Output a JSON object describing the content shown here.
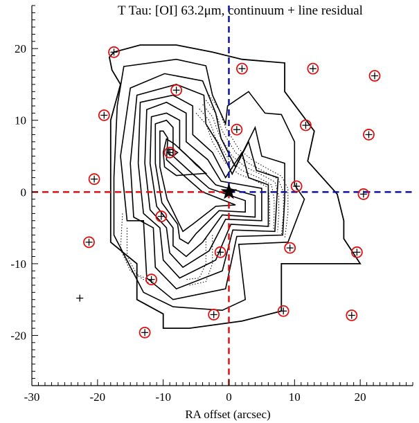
{
  "chart_data": {
    "type": "scatter",
    "title": "T Tau:  [OI] 63.2μm, continuum + line residual",
    "xlabel": "RA offset (arcsec)",
    "ylabel": "",
    "xlim": [
      -30,
      28
    ],
    "ylim": [
      -27,
      26
    ],
    "x_ticks": [
      -30,
      -20,
      -10,
      0,
      10,
      20
    ],
    "y_ticks": [
      -20,
      -10,
      0,
      10,
      20
    ],
    "star_position": [
      0,
      0
    ],
    "spaxel_centers": [
      [
        -17.5,
        19.5
      ],
      [
        2,
        17.2
      ],
      [
        12.8,
        17.2
      ],
      [
        22.2,
        16.2
      ],
      [
        -8,
        14.2
      ],
      [
        -19,
        10.7
      ],
      [
        1.2,
        8.7
      ],
      [
        11.7,
        9.3
      ],
      [
        21.3,
        8
      ],
      [
        -9,
        5.5
      ],
      [
        -20.5,
        1.8
      ],
      [
        10.3,
        0.8
      ],
      [
        20.5,
        -0.3
      ],
      [
        -10.3,
        -3.4
      ],
      [
        -21.3,
        -7
      ],
      [
        -1.3,
        -8.4
      ],
      [
        9.3,
        -7.8
      ],
      [
        19.5,
        -8.4
      ],
      [
        -11.8,
        -12.2
      ],
      [
        -2.3,
        -17.1
      ],
      [
        8.3,
        -16.6
      ],
      [
        18.7,
        -17.2
      ],
      [
        -12.8,
        -19.6
      ],
      [
        -22.7,
        -14.8
      ]
    ],
    "circled_spaxels": 23,
    "reference_lines": {
      "ra_axis_color": "#dd1111",
      "dec_axis_color": "#1111aa",
      "style": "dashed"
    },
    "contours": {
      "solid": [
        [
          [
            -18.2,
            18.8
          ],
          [
            -17.5,
            19.5
          ],
          [
            -13.5,
            20.5
          ],
          [
            -8,
            20.5
          ],
          [
            -2.5,
            19.5
          ],
          [
            2,
            18.5
          ],
          [
            8.5,
            18
          ],
          [
            8.5,
            14
          ],
          [
            13,
            8.5
          ],
          [
            12,
            4.3
          ],
          [
            16.5,
            -0.3
          ],
          [
            17.5,
            -4
          ],
          [
            17.5,
            -6.5
          ],
          [
            20,
            -10
          ],
          [
            8,
            -10
          ],
          [
            8,
            -16.6
          ],
          [
            2,
            -18
          ],
          [
            -6,
            -19
          ],
          [
            -10,
            -19
          ],
          [
            -10,
            -17
          ],
          [
            -14,
            -15
          ],
          [
            -14,
            -10
          ],
          [
            -18,
            -7
          ],
          [
            -18,
            10
          ],
          [
            -16.5,
            15
          ],
          [
            -17.8,
            17
          ]
        ],
        [
          [
            -16,
            17.5
          ],
          [
            -8,
            18.5
          ],
          [
            -3.5,
            17.6
          ],
          [
            -2.5,
            13.5
          ],
          [
            -0.5,
            9.5
          ],
          [
            -0.2,
            12
          ],
          [
            3,
            14
          ],
          [
            5.5,
            11
          ],
          [
            8,
            10.8
          ],
          [
            10,
            7
          ],
          [
            10,
            1
          ],
          [
            11.5,
            -1
          ],
          [
            9,
            -7
          ],
          [
            1.5,
            -7.3
          ],
          [
            2.5,
            -15
          ],
          [
            -1,
            -16.5
          ],
          [
            -8.5,
            -16
          ],
          [
            -13,
            -14
          ],
          [
            -17.5,
            -6
          ],
          [
            -17.5,
            2
          ],
          [
            -17,
            12
          ]
        ],
        [
          [
            -15,
            14.5
          ],
          [
            -9.8,
            16.5
          ],
          [
            -4,
            15.5
          ],
          [
            -2,
            11
          ],
          [
            -1.2,
            7.5
          ],
          [
            1,
            3.5
          ],
          [
            4,
            9
          ],
          [
            5,
            5
          ],
          [
            8.5,
            4
          ],
          [
            8.5,
            -1
          ],
          [
            8.2,
            -6
          ],
          [
            1.2,
            -6.2
          ],
          [
            -0.5,
            -13.5
          ],
          [
            -8.5,
            -15
          ],
          [
            -12.5,
            -12
          ],
          [
            -13,
            -4
          ],
          [
            -15.5,
            -4
          ],
          [
            -16.5,
            5
          ]
        ],
        [
          [
            -14,
            13.5
          ],
          [
            -8,
            15
          ],
          [
            -3.8,
            13.5
          ],
          [
            -3.5,
            9.5
          ],
          [
            -1.8,
            7
          ],
          [
            0.5,
            2.5
          ],
          [
            3,
            7
          ],
          [
            4.2,
            3
          ],
          [
            7.5,
            2
          ],
          [
            7,
            -5.5
          ],
          [
            0.6,
            -5.3
          ],
          [
            -1,
            -11
          ],
          [
            -8,
            -13.5
          ],
          [
            -11.2,
            -10.5
          ],
          [
            -11.5,
            -5
          ],
          [
            -14.5,
            -3.5
          ],
          [
            -15,
            4
          ]
        ],
        [
          [
            -13.5,
            12.5
          ],
          [
            -8.5,
            13.5
          ],
          [
            -5.5,
            12
          ],
          [
            -5.5,
            8
          ],
          [
            -2.5,
            5.5
          ],
          [
            -0.5,
            2
          ],
          [
            2,
            5.5
          ],
          [
            3,
            2
          ],
          [
            6,
            1
          ],
          [
            6,
            -4.8
          ],
          [
            0.3,
            -4.5
          ],
          [
            -2,
            -9.5
          ],
          [
            -7.5,
            -12
          ],
          [
            -10,
            -9.5
          ],
          [
            -10.5,
            -5
          ],
          [
            -13,
            -3
          ],
          [
            -13.8,
            4
          ]
        ],
        [
          [
            -12.5,
            11.5
          ],
          [
            -9.5,
            12.5
          ],
          [
            -6.5,
            11
          ],
          [
            -6.5,
            7
          ],
          [
            -3.2,
            4.5
          ],
          [
            -1.2,
            1.5
          ],
          [
            2,
            1
          ],
          [
            5,
            0.5
          ],
          [
            5,
            -4
          ],
          [
            -0.5,
            -3.8
          ],
          [
            -3,
            -8.2
          ],
          [
            -7,
            -10.5
          ],
          [
            -9,
            -8.5
          ],
          [
            -9.5,
            -5
          ],
          [
            -12,
            -2.5
          ],
          [
            -12.8,
            4
          ]
        ],
        [
          [
            -11.8,
            10.5
          ],
          [
            -9.5,
            11
          ],
          [
            -7.5,
            10
          ],
          [
            -7.5,
            6
          ],
          [
            -4.5,
            3.5
          ],
          [
            -2,
            1
          ],
          [
            4,
            -0.5
          ],
          [
            4,
            -3.5
          ],
          [
            -1,
            -3.2
          ],
          [
            -4,
            -7
          ],
          [
            -6.5,
            -9
          ],
          [
            -8.5,
            -7.5
          ],
          [
            -8.5,
            -5
          ],
          [
            -11,
            -2
          ],
          [
            -12,
            4
          ]
        ],
        [
          [
            -11.2,
            9.5
          ],
          [
            -9.5,
            10
          ],
          [
            -8.5,
            9
          ],
          [
            -8.5,
            5
          ],
          [
            -5.5,
            2.5
          ],
          [
            -3,
            0.5
          ],
          [
            2.5,
            -1.2
          ],
          [
            2.5,
            -2.8
          ],
          [
            -1.5,
            -2.6
          ],
          [
            -5,
            -5.8
          ],
          [
            -6.2,
            -7.2
          ],
          [
            -7.5,
            -6.5
          ],
          [
            -7.8,
            -4.5
          ],
          [
            -10.2,
            -1.5
          ],
          [
            -11.2,
            4
          ]
        ],
        [
          [
            -10.5,
            8.5
          ],
          [
            -10,
            8.5
          ],
          [
            -9.3,
            7.5
          ],
          [
            -9.5,
            4.5
          ],
          [
            -6.5,
            2
          ],
          [
            -4,
            0
          ],
          [
            1,
            -1.8
          ],
          [
            -2,
            -2
          ],
          [
            -5.5,
            -4.5
          ],
          [
            -7,
            -5.5
          ],
          [
            -9.4,
            -1
          ],
          [
            -10.5,
            3.5
          ]
        ],
        [
          [
            -9.5,
            7.4
          ],
          [
            -8.3,
            6.7
          ],
          [
            -6.5,
            5.2
          ],
          [
            -5,
            3.8
          ],
          [
            -3.5,
            2.6
          ],
          [
            -8,
            2.3
          ],
          [
            -9.8,
            3.5
          ],
          [
            -10,
            5.5
          ]
        ],
        [
          [
            -9.2,
            6
          ],
          [
            -8.5,
            5.9
          ],
          [
            -7.8,
            5.5
          ],
          [
            -8.5,
            5
          ],
          [
            -9.2,
            5.3
          ]
        ]
      ],
      "dotted": [
        [
          [
            -3,
            13.5
          ],
          [
            -1.5,
            11.5
          ],
          [
            -0.5,
            9
          ],
          [
            1.5,
            6
          ],
          [
            3.5,
            4.5
          ],
          [
            6,
            3.2
          ],
          [
            8,
            2.2
          ],
          [
            9,
            0.5
          ],
          [
            9,
            -3
          ],
          [
            8.5,
            -6.5
          ]
        ],
        [
          [
            -3.5,
            12.8
          ],
          [
            -2,
            11
          ],
          [
            -1,
            8.5
          ],
          [
            1,
            5.5
          ],
          [
            3,
            4
          ],
          [
            5.5,
            2.8
          ],
          [
            7.5,
            1.8
          ],
          [
            8.3,
            0
          ],
          [
            8.3,
            -3
          ],
          [
            8,
            -6
          ]
        ],
        [
          [
            -4,
            12.2
          ],
          [
            -2.5,
            10.5
          ],
          [
            -1.5,
            8
          ],
          [
            0.5,
            5
          ],
          [
            2.5,
            3.5
          ],
          [
            5,
            2.4
          ],
          [
            7,
            1.4
          ],
          [
            7.6,
            -0.5
          ],
          [
            7.6,
            -3
          ],
          [
            7.4,
            -5.6
          ]
        ],
        [
          [
            -4.5,
            11.6
          ],
          [
            -3,
            10
          ],
          [
            -2,
            7.5
          ],
          [
            0,
            4.5
          ],
          [
            2,
            3
          ],
          [
            4.5,
            2
          ],
          [
            6.5,
            1
          ],
          [
            6.9,
            -1
          ],
          [
            6.9,
            -3
          ],
          [
            6.8,
            -5.2
          ]
        ],
        [
          [
            -5,
            11
          ],
          [
            -3.5,
            9.5
          ],
          [
            -2.5,
            7
          ],
          [
            -0.5,
            4
          ],
          [
            1.5,
            2.5
          ],
          [
            4,
            1.6
          ],
          [
            6,
            0.6
          ],
          [
            6.2,
            -1.5
          ],
          [
            6.2,
            -3
          ],
          [
            6.2,
            -4.8
          ]
        ],
        [
          [
            -2.5,
            -6
          ],
          [
            -2.5,
            -10
          ],
          [
            -3.5,
            -12.5
          ],
          [
            -6,
            -13
          ]
        ],
        [
          [
            -3.5,
            -6.5
          ],
          [
            -3.5,
            -10
          ],
          [
            -4.5,
            -12
          ],
          [
            -6.5,
            -12.2
          ]
        ],
        [
          [
            -15.5,
            -5
          ],
          [
            -15.5,
            -9
          ],
          [
            -14,
            -11.5
          ],
          [
            -11.5,
            -12.5
          ]
        ],
        [
          [
            -16.2,
            -3
          ],
          [
            -16.5,
            -8
          ],
          [
            -15,
            -11
          ],
          [
            -12,
            -12.8
          ]
        ]
      ]
    }
  }
}
